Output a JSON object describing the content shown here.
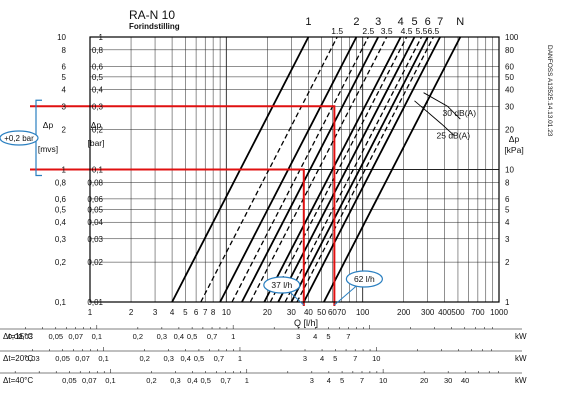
{
  "chart_data": {
    "type": "line",
    "title": "RA-N 10",
    "subtitle": "Forindstilling",
    "xlabel": "Q [l/h]",
    "x_scale": "log",
    "xlim": [
      1,
      1000
    ],
    "x_ticks": [
      1,
      2,
      3,
      4,
      5,
      6,
      7,
      8,
      9,
      10,
      20,
      30,
      40,
      50,
      60,
      70,
      80,
      90,
      100,
      200,
      300,
      400,
      500,
      600,
      700,
      800,
      900,
      1000
    ],
    "x_tick_labels": [
      {
        "v": 1,
        "t": "1"
      },
      {
        "v": 2,
        "t": "2"
      },
      {
        "v": 3,
        "t": "3"
      },
      {
        "v": 4,
        "t": "4"
      },
      {
        "v": 5,
        "t": "5"
      },
      {
        "v": 6,
        "t": "6"
      },
      {
        "v": 7,
        "t": "7"
      },
      {
        "v": 8,
        "t": "8"
      },
      {
        "v": 10,
        "t": "10"
      },
      {
        "v": 20,
        "t": "20"
      },
      {
        "v": 30,
        "t": "30"
      },
      {
        "v": 40,
        "t": "40"
      },
      {
        "v": 50,
        "t": "50"
      },
      {
        "v": 60,
        "t": "60"
      },
      {
        "v": 70,
        "t": "70"
      },
      {
        "v": 100,
        "t": "100"
      },
      {
        "v": 200,
        "t": "200"
      },
      {
        "v": 300,
        "t": "300"
      },
      {
        "v": 400,
        "t": "400"
      },
      {
        "v": 500,
        "t": "500"
      },
      {
        "v": 700,
        "t": "700"
      },
      {
        "v": 1000,
        "t": "1000"
      }
    ],
    "y_scale": "log",
    "ylim": [
      0.01,
      1
    ],
    "y_ticks": [
      0.01,
      0.02,
      0.03,
      0.04,
      0.05,
      0.06,
      0.08,
      0.1,
      0.2,
      0.3,
      0.4,
      0.5,
      0.6,
      0.8,
      1
    ],
    "y_axes": {
      "far_left": {
        "label": "Δp [mvs]",
        "ticks": [
          {
            "v": 1,
            "t": "10"
          },
          {
            "v": 0.8,
            "t": "8"
          },
          {
            "v": 0.6,
            "t": "6"
          },
          {
            "v": 0.5,
            "t": "5"
          },
          {
            "v": 0.4,
            "t": "4"
          },
          {
            "v": 0.3,
            "t": "3"
          },
          {
            "v": 0.2,
            "t": "2"
          },
          {
            "v": 0.1,
            "t": "1"
          },
          {
            "v": 0.08,
            "t": "0,8"
          },
          {
            "v": 0.06,
            "t": "0,6"
          },
          {
            "v": 0.05,
            "t": "0,5"
          },
          {
            "v": 0.04,
            "t": "0,4"
          },
          {
            "v": 0.03,
            "t": "0,3"
          },
          {
            "v": 0.02,
            "t": "0,2"
          },
          {
            "v": 0.01,
            "t": "0,1"
          }
        ]
      },
      "left": {
        "label": "Δp [bar]",
        "ticks": [
          {
            "v": 1,
            "t": "1"
          },
          {
            "v": 0.8,
            "t": "0,8"
          },
          {
            "v": 0.6,
            "t": "0,6"
          },
          {
            "v": 0.5,
            "t": "0,5"
          },
          {
            "v": 0.4,
            "t": "0,4"
          },
          {
            "v": 0.3,
            "t": "0,3"
          },
          {
            "v": 0.2,
            "t": "0,2"
          },
          {
            "v": 0.1,
            "t": "0,1"
          },
          {
            "v": 0.08,
            "t": "0,08"
          },
          {
            "v": 0.06,
            "t": "0,06"
          },
          {
            "v": 0.05,
            "t": "0,05"
          },
          {
            "v": 0.04,
            "t": "0,04"
          },
          {
            "v": 0.03,
            "t": "0,03"
          },
          {
            "v": 0.02,
            "t": "0,02"
          },
          {
            "v": 0.01,
            "t": "0,01"
          }
        ]
      },
      "right": {
        "label": "Δp [kPa]",
        "ticks": [
          {
            "v": 1,
            "t": "100"
          },
          {
            "v": 0.8,
            "t": "80"
          },
          {
            "v": 0.6,
            "t": "60"
          },
          {
            "v": 0.5,
            "t": "50"
          },
          {
            "v": 0.4,
            "t": "40"
          },
          {
            "v": 0.3,
            "t": "30"
          },
          {
            "v": 0.2,
            "t": "20"
          },
          {
            "v": 0.1,
            "t": "10"
          },
          {
            "v": 0.08,
            "t": "8"
          },
          {
            "v": 0.06,
            "t": "6"
          },
          {
            "v": 0.05,
            "t": "5"
          },
          {
            "v": 0.04,
            "t": "4"
          },
          {
            "v": 0.03,
            "t": "3"
          },
          {
            "v": 0.02,
            "t": "2"
          },
          {
            "v": 0.01,
            "t": "1"
          }
        ]
      }
    },
    "grid": true,
    "series": [
      {
        "name": "1",
        "style": "solid",
        "x": [
          4,
          40
        ],
        "y": [
          0.01,
          1
        ]
      },
      {
        "name": "1.5",
        "style": "dashed",
        "x": [
          6.5,
          65
        ],
        "y": [
          0.01,
          1
        ]
      },
      {
        "name": "2",
        "style": "solid",
        "x": [
          9,
          90
        ],
        "y": [
          0.01,
          1
        ]
      },
      {
        "name": "2.5",
        "style": "dashed",
        "x": [
          11,
          110
        ],
        "y": [
          0.01,
          1
        ]
      },
      {
        "name": "3",
        "style": "solid",
        "x": [
          13,
          130
        ],
        "y": [
          0.01,
          1
        ]
      },
      {
        "name": "3.5",
        "style": "dashed",
        "x": [
          15,
          150
        ],
        "y": [
          0.01,
          1
        ]
      },
      {
        "name": "4",
        "style": "solid",
        "x": [
          19,
          190
        ],
        "y": [
          0.01,
          1
        ]
      },
      {
        "name": "4.5",
        "style": "dashed",
        "x": [
          21,
          210
        ],
        "y": [
          0.01,
          1
        ]
      },
      {
        "name": "5",
        "style": "solid",
        "x": [
          24,
          240
        ],
        "y": [
          0.01,
          1
        ]
      },
      {
        "name": "5.5",
        "style": "dashed",
        "x": [
          27,
          270
        ],
        "y": [
          0.01,
          1
        ]
      },
      {
        "name": "6",
        "style": "solid",
        "x": [
          30,
          300
        ],
        "y": [
          0.01,
          1
        ]
      },
      {
        "name": "6.5",
        "style": "dashed",
        "x": [
          33,
          330
        ],
        "y": [
          0.01,
          1
        ]
      },
      {
        "name": "7",
        "style": "solid",
        "x": [
          37,
          370
        ],
        "y": [
          0.01,
          1
        ]
      },
      {
        "name": "N",
        "style": "solid",
        "x": [
          52,
          520
        ],
        "y": [
          0.01,
          1
        ]
      }
    ],
    "noise_curves": [
      {
        "label": "30 dB(A)",
        "x": [
          280,
          420,
          520
        ],
        "y": [
          0.38,
          0.3,
          0.24
        ]
      },
      {
        "label": "25 dB(A)",
        "x": [
          240,
          380,
          470
        ],
        "y": [
          0.33,
          0.22,
          0.18
        ]
      }
    ],
    "annotations": [
      {
        "label": "37 l/h",
        "x": 37,
        "y_bar": 0.1
      },
      {
        "label": "62 l/h",
        "x": 62,
        "y_bar": 0.3
      }
    ],
    "left_bracket_label": "+0,2 bar",
    "side_code": "DANFOSS A13525.14.13.01.23",
    "kw_scales": [
      {
        "label": "Δt=15°C",
        "unit": "kW",
        "ticks": [
          {
            "v": 0.02,
            "t": "0,02"
          },
          {
            "v": 0.03,
            "t": "0,03"
          },
          {
            "v": 0.05,
            "t": "0,05"
          },
          {
            "v": 0.07,
            "t": "0,07"
          },
          {
            "v": 0.1,
            "t": "0,1"
          },
          {
            "v": 0.2,
            "t": "0,2"
          },
          {
            "v": 0.3,
            "t": "0,3"
          },
          {
            "v": 0.4,
            "t": "0,4"
          },
          {
            "v": 0.5,
            "t": "0,5"
          },
          {
            "v": 0.7,
            "t": "0,7"
          },
          {
            "v": 1,
            "t": "1"
          },
          {
            "v": 3,
            "t": "3"
          },
          {
            "v": 4,
            "t": "4"
          },
          {
            "v": 5,
            "t": "5"
          },
          {
            "v": 7,
            "t": "7"
          }
        ]
      },
      {
        "label": "Δt=20°C",
        "unit": "kW",
        "ticks": [
          {
            "v": 0.03,
            "t": "0,03"
          },
          {
            "v": 0.05,
            "t": "0,05"
          },
          {
            "v": 0.07,
            "t": "0,07"
          },
          {
            "v": 0.1,
            "t": "0,1"
          },
          {
            "v": 0.2,
            "t": "0,2"
          },
          {
            "v": 0.3,
            "t": "0,3"
          },
          {
            "v": 0.4,
            "t": "0,4"
          },
          {
            "v": 0.5,
            "t": "0,5"
          },
          {
            "v": 0.7,
            "t": "0,7"
          },
          {
            "v": 1,
            "t": "1"
          },
          {
            "v": 3,
            "t": "3"
          },
          {
            "v": 4,
            "t": "4"
          },
          {
            "v": 5,
            "t": "5"
          },
          {
            "v": 7,
            "t": "7"
          },
          {
            "v": 10,
            "t": "10"
          }
        ]
      },
      {
        "label": "Δt=40°C",
        "unit": "kW",
        "ticks": [
          {
            "v": 0.05,
            "t": "0,05"
          },
          {
            "v": 0.07,
            "t": "0,07"
          },
          {
            "v": 0.1,
            "t": "0,1"
          },
          {
            "v": 0.2,
            "t": "0,2"
          },
          {
            "v": 0.3,
            "t": "0,3"
          },
          {
            "v": 0.4,
            "t": "0,4"
          },
          {
            "v": 0.5,
            "t": "0,5"
          },
          {
            "v": 0.7,
            "t": "0,7"
          },
          {
            "v": 1,
            "t": "1"
          },
          {
            "v": 3,
            "t": "3"
          },
          {
            "v": 4,
            "t": "4"
          },
          {
            "v": 5,
            "t": "5"
          },
          {
            "v": 7,
            "t": "7"
          },
          {
            "v": 10,
            "t": "10"
          },
          {
            "v": 20,
            "t": "20"
          },
          {
            "v": 30,
            "t": "30"
          },
          {
            "v": 40,
            "t": "40"
          }
        ]
      }
    ],
    "colors": {
      "curve": "#000000",
      "grid": "#222222",
      "highlight": "#e01010",
      "callout": "#2a7fc0"
    }
  }
}
